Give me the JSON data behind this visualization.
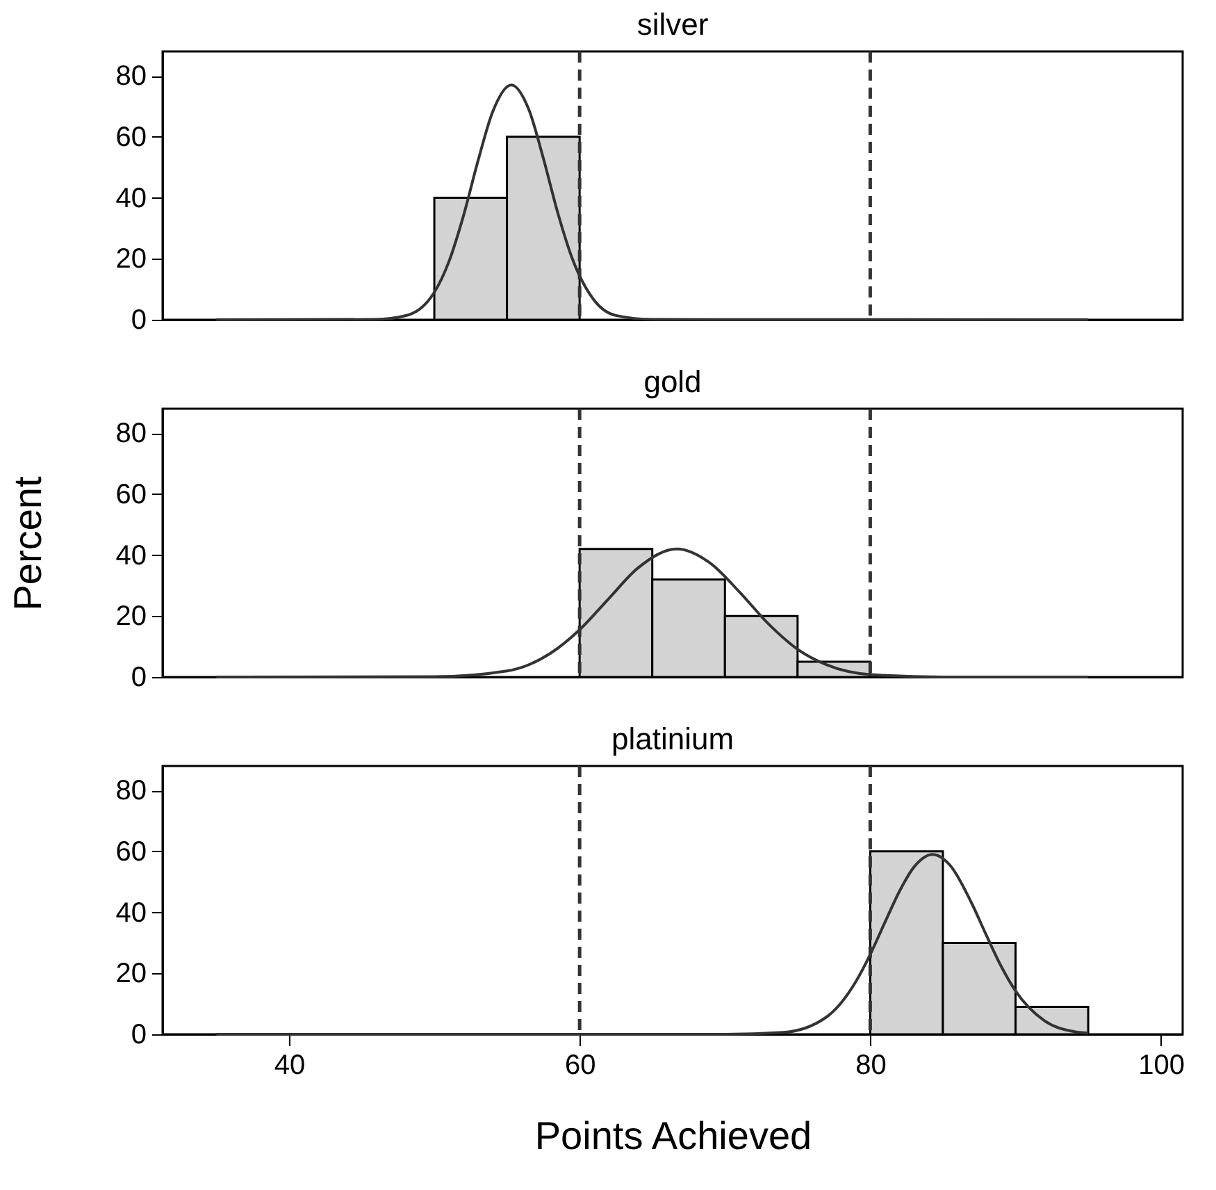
{
  "chart_data": [
    {
      "type": "histogram",
      "title": "silver",
      "xlim": [
        31.3,
        101.5
      ],
      "ylim": [
        0,
        88
      ],
      "yticks": [
        0,
        20,
        40,
        60,
        80
      ],
      "tick_labels": "y",
      "grid": false,
      "series": [
        {
          "color": "#d3d3d3",
          "bins": [
            50,
            55,
            60
          ],
          "values": [
            40,
            60
          ]
        },
        {
          "type": "line",
          "color": "#333333",
          "x": [
            35,
            46,
            48,
            50,
            51,
            52,
            53,
            54,
            55.3,
            56.5,
            57.5,
            58.5,
            59.5,
            61,
            62.5,
            65,
            95
          ],
          "values": [
            0,
            0.1,
            1.3,
            9,
            19,
            34,
            52,
            68,
            77,
            69,
            53,
            35,
            20,
            6.4,
            1.4,
            0.1,
            0
          ]
        }
      ],
      "ref_lines": [
        {
          "axis": "x",
          "value": 60,
          "line_style": "dashed",
          "color": "#333333"
        },
        {
          "axis": "x",
          "value": 80,
          "line_style": "dashed",
          "color": "#333333"
        }
      ]
    },
    {
      "type": "histogram",
      "title": "gold",
      "ylabel": "Percent",
      "xlim": [
        31.3,
        101.5
      ],
      "ylim": [
        0,
        88
      ],
      "yticks": [
        0,
        20,
        40,
        60,
        80
      ],
      "tick_labels": "y",
      "grid": false,
      "series": [
        {
          "color": "#d3d3d3",
          "bins": [
            60,
            65,
            70,
            75,
            80
          ],
          "values": [
            42,
            32,
            20,
            5
          ]
        },
        {
          "type": "line",
          "color": "#333333",
          "x": [
            35,
            50,
            55,
            58,
            60,
            62,
            64,
            66.7,
            69,
            71,
            73,
            75,
            77,
            80,
            85,
            95
          ],
          "values": [
            0,
            0.1,
            2,
            7.8,
            15.5,
            25.7,
            35.7,
            42,
            37.3,
            27.9,
            17.4,
            9.1,
            4,
            0.8,
            0,
            0
          ]
        }
      ],
      "ref_lines": [
        {
          "axis": "x",
          "value": 60,
          "line_style": "dashed",
          "color": "#333333"
        },
        {
          "axis": "x",
          "value": 80,
          "line_style": "dashed",
          "color": "#333333"
        }
      ]
    },
    {
      "type": "histogram",
      "title": "platinium",
      "xlabel": "Points Achieved",
      "xlim": [
        31.3,
        101.5
      ],
      "xticks": [
        40,
        60,
        80,
        100
      ],
      "ylim": [
        0,
        88
      ],
      "yticks": [
        0,
        20,
        40,
        60,
        80
      ],
      "grid": false,
      "series": [
        {
          "color": "#d3d3d3",
          "bins": [
            80,
            85,
            90,
            95
          ],
          "values": [
            60,
            30,
            9
          ]
        },
        {
          "type": "line",
          "color": "#333333",
          "x": [
            35,
            70,
            74,
            77,
            79,
            80,
            81,
            82,
            83,
            84.3,
            85.5,
            87,
            88,
            89,
            90,
            92,
            94,
            95
          ],
          "values": [
            0,
            0,
            0.6,
            5.7,
            17.2,
            26.2,
            36.6,
            46.8,
            54.8,
            59,
            55.4,
            42.8,
            32.4,
            22.4,
            14.2,
            4.4,
            0.9,
            0.4
          ]
        }
      ],
      "ref_lines": [
        {
          "axis": "x",
          "value": 60,
          "line_style": "dashed",
          "color": "#333333"
        },
        {
          "axis": "x",
          "value": 80,
          "line_style": "dashed",
          "color": "#333333"
        }
      ]
    }
  ]
}
